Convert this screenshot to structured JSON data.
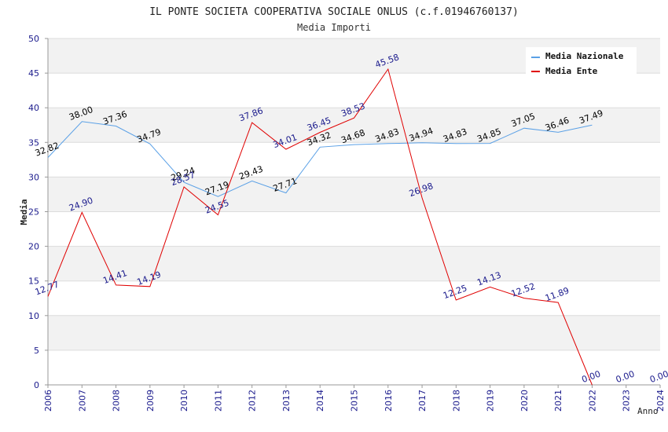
{
  "chart_data": {
    "type": "line",
    "title": "IL PONTE SOCIETA COOPERATIVA SOCIALE ONLUS (c.f.01946760137)",
    "subtitle": "Media Importi",
    "xlabel": "Anno",
    "ylabel": "Media",
    "ylim": [
      0,
      50
    ],
    "y_ticks": [
      0,
      5,
      10,
      15,
      20,
      25,
      30,
      35,
      40,
      45,
      50
    ],
    "x": [
      "2006",
      "2007",
      "2008",
      "2009",
      "2010",
      "2011",
      "2012",
      "2013",
      "2014",
      "2015",
      "2016",
      "2017",
      "2018",
      "2019",
      "2020",
      "2021",
      "2022",
      "2023",
      "2024"
    ],
    "grid": true,
    "legend_position": "top-right",
    "series": [
      {
        "name": "Media Nazionale",
        "color": "#5aa0e6",
        "label_color": "#000000",
        "values": [
          32.82,
          38.0,
          37.36,
          34.79,
          29.24,
          27.19,
          29.43,
          27.71,
          34.32,
          34.68,
          34.83,
          34.94,
          34.83,
          34.85,
          37.05,
          36.46,
          37.49,
          null,
          null
        ],
        "labels": [
          "32.82",
          "38.00",
          "37.36",
          "34.79",
          "29.24",
          "27.19",
          "29.43",
          "27.71",
          "34.32",
          "34.68",
          "34.83",
          "34.94",
          "34.83",
          "34.85",
          "37.05",
          "36.46",
          "37.49",
          "",
          ""
        ]
      },
      {
        "name": "Media Ente",
        "color": "#e00000",
        "label_color": "#1a1a8c",
        "values": [
          12.77,
          24.9,
          14.41,
          14.19,
          28.57,
          24.55,
          37.86,
          34.01,
          36.45,
          38.53,
          45.58,
          26.98,
          12.25,
          14.13,
          12.52,
          11.89,
          0.0,
          0.0,
          0.0
        ],
        "labels": [
          "12.77",
          "24.90",
          "14.41",
          "14.19",
          "28.57",
          "24.55",
          "37.86",
          "34.01",
          "36.45",
          "38.53",
          "45.58",
          "26.98",
          "12.25",
          "14.13",
          "12.52",
          "11.89",
          "0.00",
          "0.00",
          "0.00"
        ],
        "line_points": 17
      }
    ]
  }
}
